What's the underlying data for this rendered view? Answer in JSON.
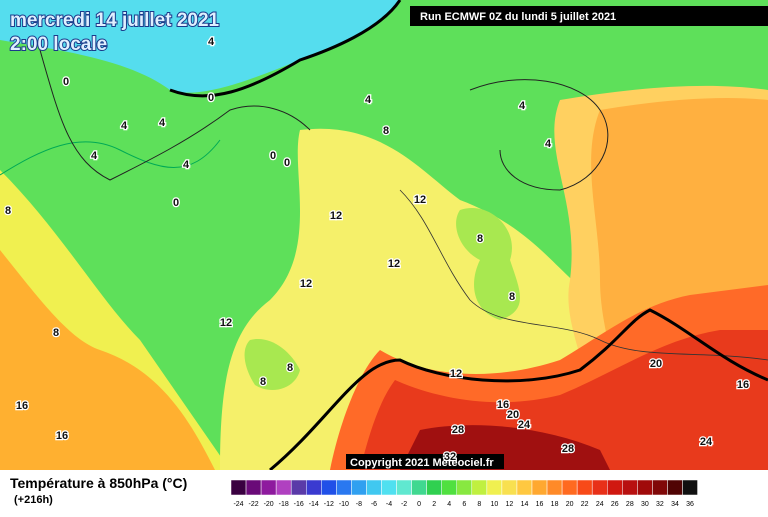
{
  "header": {
    "date": "mercredi 14 juillet 2021",
    "time": "2:00 locale",
    "run": "Run ECMWF 0Z du lundi 5 juillet 2021"
  },
  "map": {
    "contour_labels": [
      "4",
      "0",
      "0",
      "4",
      "4",
      "4",
      "4",
      "8",
      "4",
      "4",
      "0",
      "0",
      "4",
      "0",
      "8",
      "12",
      "12",
      "12",
      "8",
      "12",
      "8",
      "8",
      "12",
      "8",
      "8",
      "12",
      "20",
      "16",
      "16",
      "16",
      "20",
      "24",
      "16",
      "28",
      "28",
      "24",
      "32"
    ]
  },
  "copyright": "Copyright 2021 Meteociel.fr",
  "legend": {
    "title": "Température à 850hPa (°C)",
    "lead_time": "(+216h)",
    "scale_labels": [
      -24,
      -22,
      -20,
      -18,
      -16,
      -14,
      -12,
      -10,
      -8,
      -6,
      -4,
      -2,
      0,
      2,
      4,
      6,
      8,
      10,
      12,
      14,
      16,
      18,
      20,
      22,
      24,
      26,
      28,
      30,
      32,
      34,
      36
    ],
    "scale_colors": [
      "#3a0040",
      "#6a0a78",
      "#8e1a9e",
      "#b040c0",
      "#5a3aa8",
      "#3a3ad0",
      "#2050e8",
      "#2a78f0",
      "#30a0f0",
      "#40c8f0",
      "#50e0f0",
      "#60e8d0",
      "#40d890",
      "#30d050",
      "#50e040",
      "#88e840",
      "#c0f040",
      "#f0f050",
      "#f8e050",
      "#ffc840",
      "#ffa830",
      "#ff8a28",
      "#ff6a20",
      "#f84a18",
      "#e83018",
      "#d01810",
      "#b81010",
      "#a00a0a",
      "#800808",
      "#500404",
      "#101010"
    ]
  }
}
